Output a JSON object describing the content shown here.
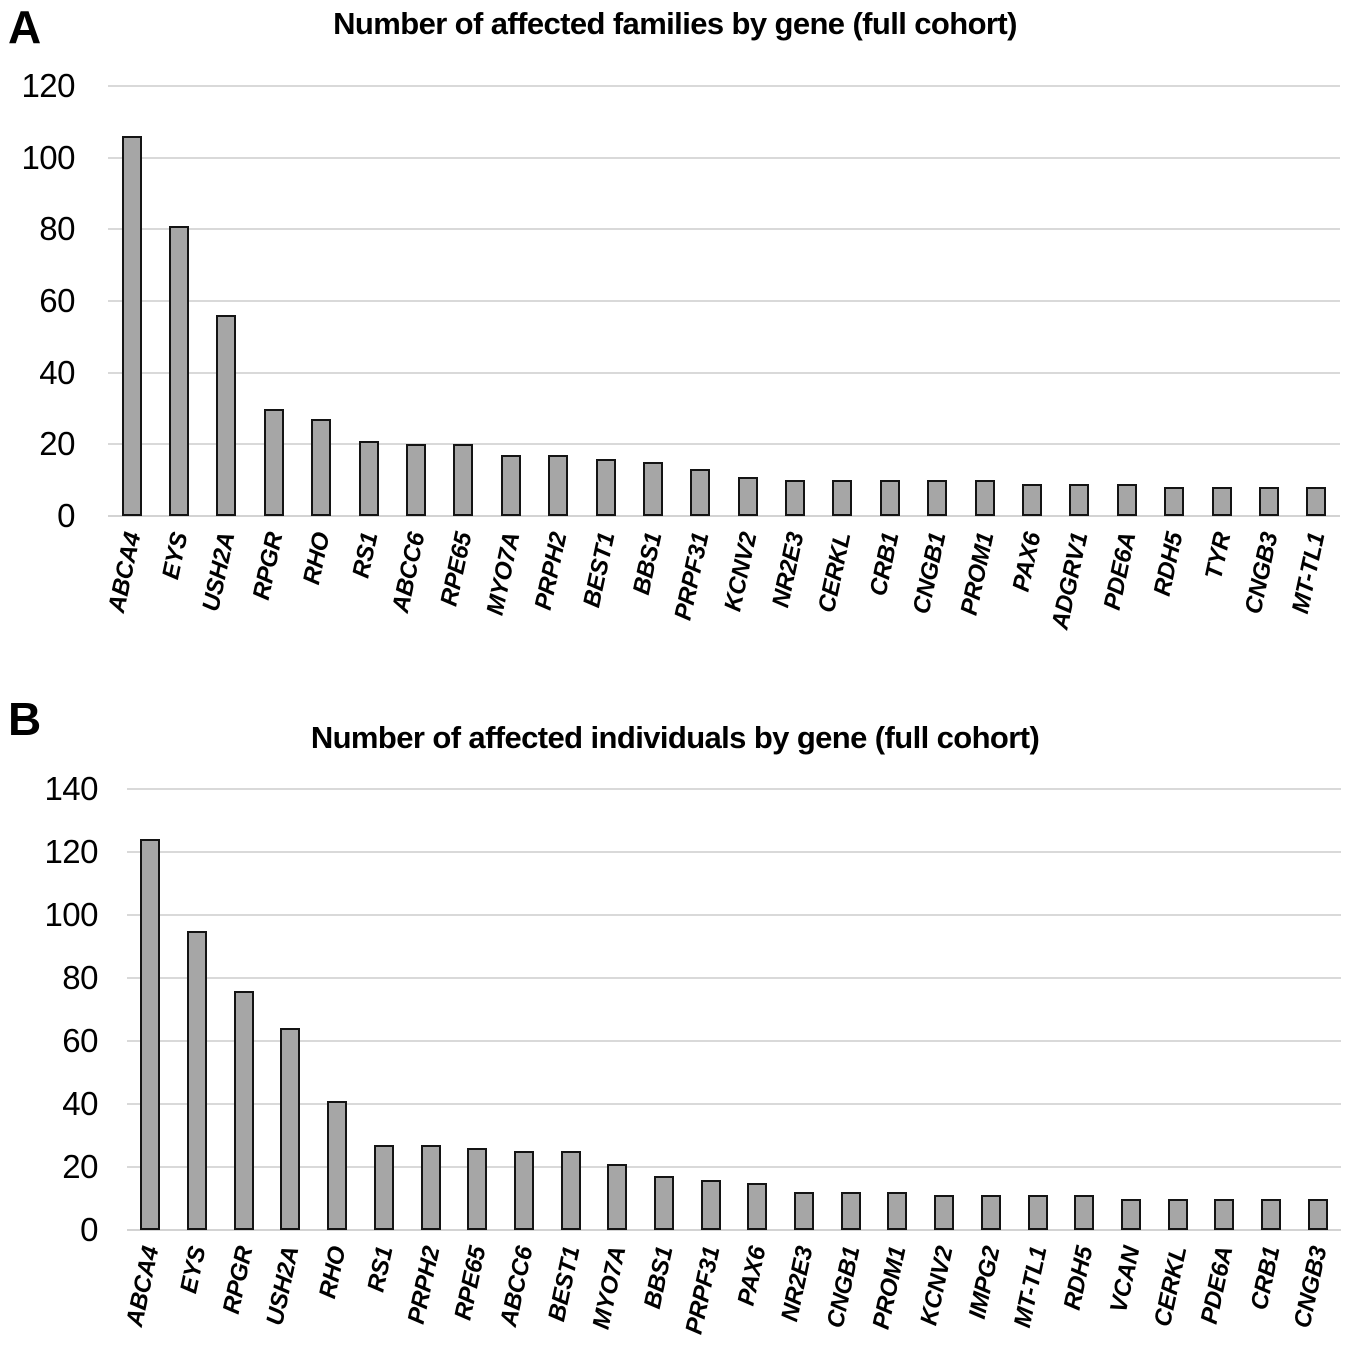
{
  "page": {
    "background_color": "#ffffff",
    "text_color": "#000000"
  },
  "chart_data": [
    {
      "panel_letter": "A",
      "type": "bar",
      "title": "Number of affected families by gene (full cohort)",
      "categories": [
        "ABCA4",
        "EYS",
        "USH2A",
        "RPGR",
        "RHO",
        "RS1",
        "ABCC6",
        "RPE65",
        "MYO7A",
        "PRPH2",
        "BEST1",
        "BBS1",
        "PRPF31",
        "KCNV2",
        "NR2E3",
        "CERKL",
        "CRB1",
        "CNGB1",
        "PROM1",
        "PAX6",
        "ADGRV1",
        "PDE6A",
        "RDH5",
        "TYR",
        "CNGB3",
        "MT-TL1"
      ],
      "values": [
        106,
        81,
        56,
        30,
        27,
        21,
        20,
        20,
        17,
        17,
        16,
        15,
        13,
        11,
        10,
        10,
        10,
        10,
        10,
        9,
        9,
        9,
        8,
        8,
        8,
        8
      ],
      "xlabel": "",
      "ylabel": "",
      "ylim": [
        0,
        120
      ],
      "yticks": [
        0,
        20,
        40,
        60,
        80,
        100,
        120
      ],
      "grid": true,
      "legend": "none",
      "bar_color": "#a6a6a6",
      "bar_border_color": "#141414",
      "gridline_color": "#d9d9d9",
      "category_label_style": "italic, rotated"
    },
    {
      "panel_letter": "B",
      "type": "bar",
      "title": "Number of affected individuals by gene (full cohort)",
      "categories": [
        "ABCA4",
        "EYS",
        "RPGR",
        "USH2A",
        "RHO",
        "RS1",
        "PRPH2",
        "RPE65",
        "ABCC6",
        "BEST1",
        "MYO7A",
        "BBS1",
        "PRPF31",
        "PAX6",
        "NR2E3",
        "CNGB1",
        "PROM1",
        "KCNV2",
        "IMPG2",
        "MT-TL1",
        "RDH5",
        "VCAN",
        "CERKL",
        "PDE6A",
        "CRB1",
        "CNGB3"
      ],
      "values": [
        124,
        95,
        76,
        64,
        41,
        27,
        27,
        26,
        25,
        25,
        21,
        17,
        16,
        15,
        12,
        12,
        12,
        11,
        11,
        11,
        11,
        10,
        10,
        10,
        10,
        10
      ],
      "xlabel": "",
      "ylabel": "",
      "ylim": [
        0,
        140
      ],
      "yticks": [
        0,
        20,
        40,
        60,
        80,
        100,
        120,
        140
      ],
      "grid": true,
      "legend": "none",
      "bar_color": "#a6a6a6",
      "bar_border_color": "#141414",
      "gridline_color": "#d9d9d9",
      "category_label_style": "italic, rotated"
    }
  ]
}
